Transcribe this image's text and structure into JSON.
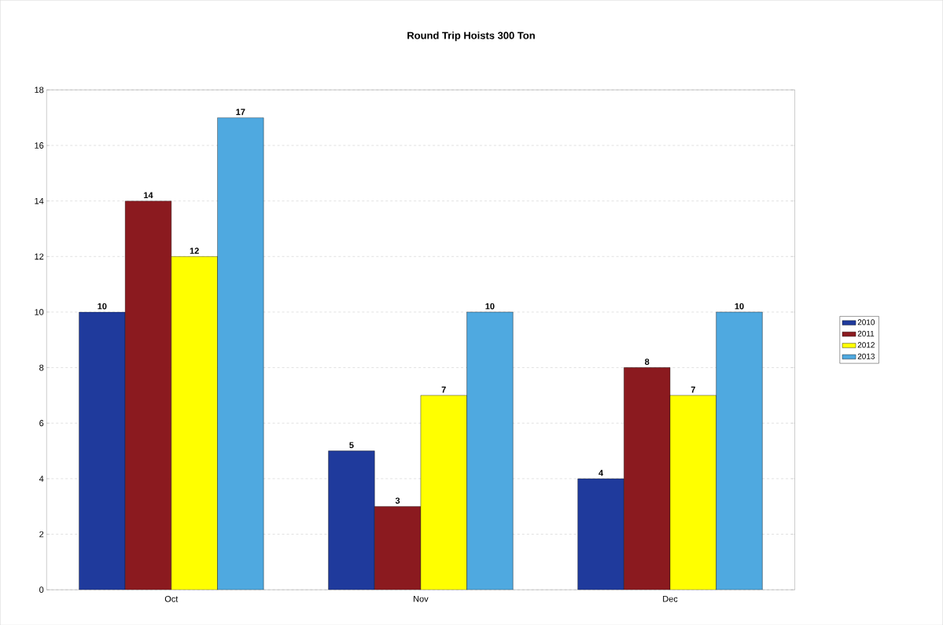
{
  "chart_data": {
    "type": "bar",
    "title": "Round Trip Hoists 300 Ton",
    "categories": [
      "Oct",
      "Nov",
      "Dec"
    ],
    "series": [
      {
        "name": "2010",
        "color": "#1f3a9c",
        "values": [
          10,
          5,
          4
        ]
      },
      {
        "name": "2011",
        "color": "#8b1a1f",
        "values": [
          14,
          3,
          8
        ]
      },
      {
        "name": "2012",
        "color": "#ffff00",
        "values": [
          12,
          7,
          7
        ]
      },
      {
        "name": "2013",
        "color": "#4fa9e0",
        "values": [
          17,
          10,
          10
        ]
      }
    ],
    "ylim": [
      0,
      18
    ],
    "yticks": [
      0,
      2,
      4,
      6,
      8,
      10,
      12,
      14,
      16,
      18
    ],
    "grid": "y",
    "legend": "right",
    "data_labels": true
  }
}
